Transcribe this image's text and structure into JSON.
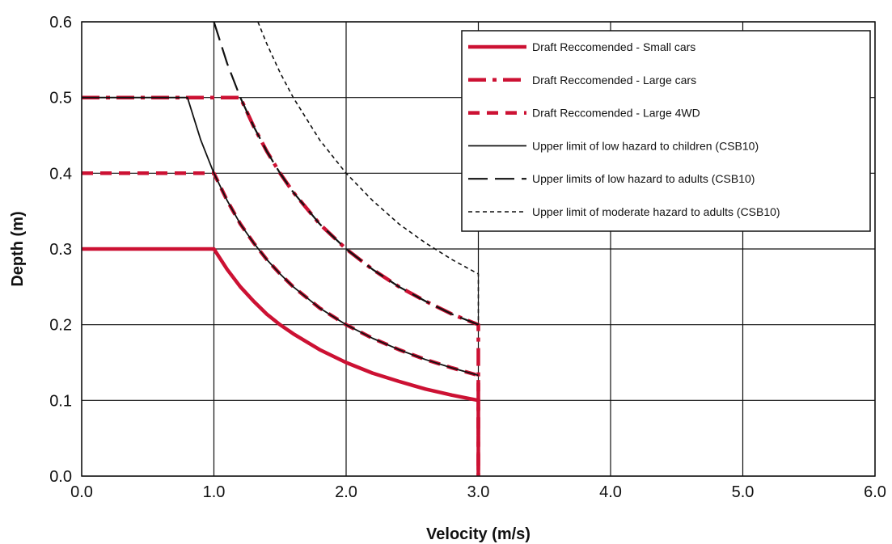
{
  "chart_data": {
    "type": "line",
    "title": "",
    "xlabel": "Velocity (m/s)",
    "ylabel": "Depth (m)",
    "xlim": [
      0,
      6
    ],
    "ylim": [
      0,
      0.6
    ],
    "x_ticks": [
      0,
      1,
      2,
      3,
      4,
      5,
      6
    ],
    "x_tick_labels": [
      "0.0",
      "1.0",
      "2.0",
      "3.0",
      "4.0",
      "5.0",
      "6.0"
    ],
    "y_ticks": [
      0,
      0.1,
      0.2,
      0.3,
      0.4,
      0.5,
      0.6
    ],
    "y_tick_labels": [
      "0.0",
      "0.1",
      "0.2",
      "0.3",
      "0.4",
      "0.5",
      "0.6"
    ],
    "grid": true,
    "legend_position": "top-right",
    "series": [
      {
        "name": "Draft Reccomended - Small cars",
        "color": "#cc1133",
        "style": "solid-thick",
        "points": [
          [
            0,
            0.3
          ],
          [
            1.0,
            0.3
          ],
          [
            1.1,
            0.273
          ],
          [
            1.2,
            0.25
          ],
          [
            1.3,
            0.231
          ],
          [
            1.4,
            0.214
          ],
          [
            1.5,
            0.2
          ],
          [
            1.6,
            0.188
          ],
          [
            1.8,
            0.167
          ],
          [
            2.0,
            0.15
          ],
          [
            2.2,
            0.136
          ],
          [
            2.4,
            0.125
          ],
          [
            2.6,
            0.115
          ],
          [
            2.8,
            0.107
          ],
          [
            3.0,
            0.1
          ],
          [
            3.0,
            0.0
          ]
        ]
      },
      {
        "name": "Draft Reccomended - Large cars",
        "color": "#cc1133",
        "style": "dash-dot-thick",
        "points": [
          [
            0,
            0.5
          ],
          [
            1.2,
            0.5
          ],
          [
            1.3,
            0.462
          ],
          [
            1.4,
            0.429
          ],
          [
            1.5,
            0.4
          ],
          [
            1.6,
            0.375
          ],
          [
            1.8,
            0.333
          ],
          [
            2.0,
            0.3
          ],
          [
            2.2,
            0.273
          ],
          [
            2.4,
            0.25
          ],
          [
            2.6,
            0.231
          ],
          [
            2.8,
            0.214
          ],
          [
            3.0,
            0.2
          ],
          [
            3.0,
            0.0
          ]
        ]
      },
      {
        "name": "Draft Reccomended - Large 4WD",
        "color": "#cc1133",
        "style": "dashed-thick",
        "points": [
          [
            0,
            0.4
          ],
          [
            1.0,
            0.4
          ],
          [
            1.1,
            0.364
          ],
          [
            1.2,
            0.333
          ],
          [
            1.3,
            0.308
          ],
          [
            1.4,
            0.286
          ],
          [
            1.5,
            0.267
          ],
          [
            1.6,
            0.25
          ],
          [
            1.8,
            0.222
          ],
          [
            2.0,
            0.2
          ],
          [
            2.2,
            0.182
          ],
          [
            2.4,
            0.167
          ],
          [
            2.6,
            0.154
          ],
          [
            2.8,
            0.143
          ],
          [
            3.0,
            0.133
          ],
          [
            3.0,
            0.0
          ]
        ]
      },
      {
        "name": "Upper limit of low hazard to children (CSB10)",
        "color": "#111111",
        "style": "solid-thin",
        "points": [
          [
            0,
            0.5
          ],
          [
            0.8,
            0.5
          ],
          [
            0.9,
            0.444
          ],
          [
            1.0,
            0.4
          ],
          [
            1.1,
            0.364
          ],
          [
            1.2,
            0.333
          ],
          [
            1.3,
            0.308
          ],
          [
            1.4,
            0.286
          ],
          [
            1.5,
            0.267
          ],
          [
            1.6,
            0.25
          ],
          [
            1.8,
            0.222
          ],
          [
            2.0,
            0.2
          ],
          [
            2.2,
            0.182
          ],
          [
            2.4,
            0.167
          ],
          [
            2.6,
            0.154
          ],
          [
            2.8,
            0.143
          ],
          [
            3.0,
            0.133
          ]
        ]
      },
      {
        "name": "Upper limits of low hazard to adults (CSB10)",
        "color": "#111111",
        "style": "long-dash",
        "points": [
          [
            1.0,
            0.6
          ],
          [
            1.1,
            0.545
          ],
          [
            1.2,
            0.5
          ],
          [
            1.3,
            0.462
          ],
          [
            1.4,
            0.429
          ],
          [
            1.5,
            0.4
          ],
          [
            1.6,
            0.375
          ],
          [
            1.8,
            0.333
          ],
          [
            2.0,
            0.3
          ],
          [
            2.2,
            0.273
          ],
          [
            2.4,
            0.25
          ],
          [
            2.6,
            0.231
          ],
          [
            2.8,
            0.214
          ],
          [
            3.0,
            0.2
          ]
        ]
      },
      {
        "name": "Upper limit of moderate hazard to adults (CSB10)",
        "color": "#111111",
        "style": "short-dash",
        "points": [
          [
            1.333,
            0.6
          ],
          [
            1.4,
            0.571
          ],
          [
            1.5,
            0.533
          ],
          [
            1.6,
            0.5
          ],
          [
            1.8,
            0.444
          ],
          [
            2.0,
            0.4
          ],
          [
            2.2,
            0.364
          ],
          [
            2.4,
            0.333
          ],
          [
            2.6,
            0.308
          ],
          [
            2.8,
            0.286
          ],
          [
            3.0,
            0.267
          ],
          [
            3.0,
            0.2
          ]
        ]
      }
    ]
  }
}
